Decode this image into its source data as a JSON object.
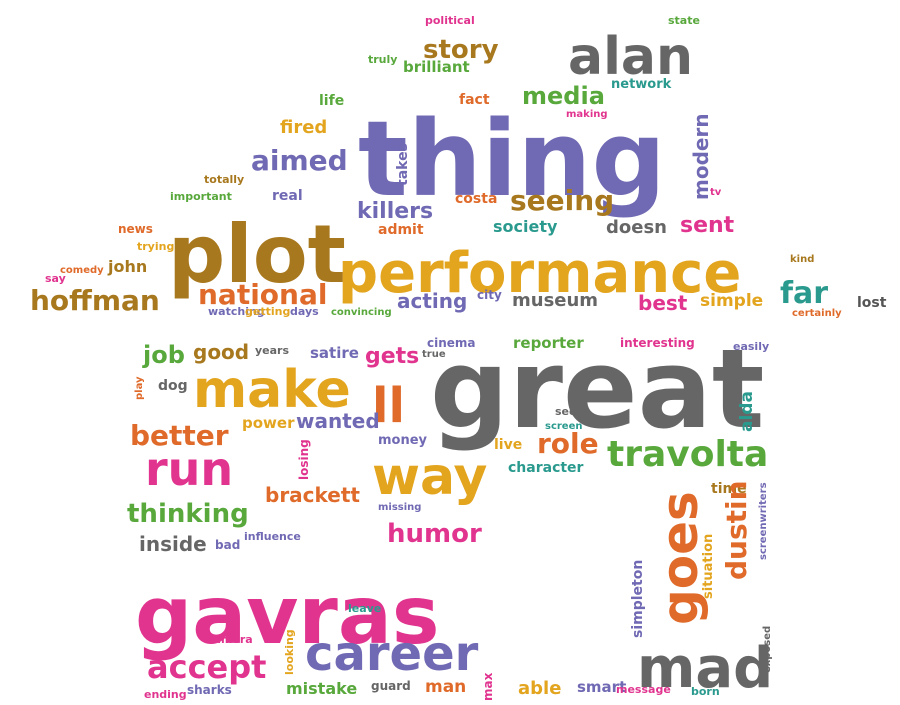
{
  "palette": {
    "purple": "#7069b3",
    "gray": "#666666",
    "olive": "#a8781e",
    "yellow": "#e3a41e",
    "orange": "#df6a2a",
    "pink": "#e1348f",
    "green": "#58a83c",
    "teal": "#2a9a8e",
    "darkgray": "#555555"
  },
  "words": [
    {
      "text": "political",
      "color": "pink"
    },
    {
      "text": "state",
      "color": "green"
    },
    {
      "text": "story",
      "color": "olive"
    },
    {
      "text": "alan",
      "color": "gray"
    },
    {
      "text": "truly",
      "color": "green"
    },
    {
      "text": "brilliant",
      "color": "green"
    },
    {
      "text": "network",
      "color": "teal"
    },
    {
      "text": "fact",
      "color": "orange"
    },
    {
      "text": "media",
      "color": "green"
    },
    {
      "text": "making",
      "color": "pink"
    },
    {
      "text": "life",
      "color": "green"
    },
    {
      "text": "thing",
      "color": "purple"
    },
    {
      "text": "fired",
      "color": "yellow"
    },
    {
      "text": "modern",
      "color": "purple"
    },
    {
      "text": "aimed",
      "color": "purple"
    },
    {
      "text": "takes",
      "color": "purple"
    },
    {
      "text": "totally",
      "color": "olive"
    },
    {
      "text": "important",
      "color": "green"
    },
    {
      "text": "real",
      "color": "purple"
    },
    {
      "text": "killers",
      "color": "purple"
    },
    {
      "text": "costa",
      "color": "orange"
    },
    {
      "text": "seeing",
      "color": "olive"
    },
    {
      "text": "tv",
      "color": "pink"
    },
    {
      "text": "news",
      "color": "orange"
    },
    {
      "text": "plot",
      "color": "olive"
    },
    {
      "text": "admit",
      "color": "orange"
    },
    {
      "text": "society",
      "color": "teal"
    },
    {
      "text": "doesn",
      "color": "gray"
    },
    {
      "text": "sent",
      "color": "pink"
    },
    {
      "text": "trying",
      "color": "yellow"
    },
    {
      "text": "kind",
      "color": "olive"
    },
    {
      "text": "say",
      "color": "pink"
    },
    {
      "text": "comedy",
      "color": "orange"
    },
    {
      "text": "john",
      "color": "olive"
    },
    {
      "text": "performance",
      "color": "yellow"
    },
    {
      "text": "national",
      "color": "orange"
    },
    {
      "text": "far",
      "color": "teal"
    },
    {
      "text": "lost",
      "color": "darkgray"
    },
    {
      "text": "hoffman",
      "color": "olive"
    },
    {
      "text": "acting",
      "color": "purple"
    },
    {
      "text": "city",
      "color": "purple"
    },
    {
      "text": "museum",
      "color": "gray"
    },
    {
      "text": "best",
      "color": "pink"
    },
    {
      "text": "simple",
      "color": "yellow"
    },
    {
      "text": "watching",
      "color": "purple"
    },
    {
      "text": "getting",
      "color": "yellow"
    },
    {
      "text": "days",
      "color": "purple"
    },
    {
      "text": "convincing",
      "color": "green"
    },
    {
      "text": "certainly",
      "color": "orange"
    },
    {
      "text": "job",
      "color": "green"
    },
    {
      "text": "good",
      "color": "olive"
    },
    {
      "text": "years",
      "color": "gray"
    },
    {
      "text": "satire",
      "color": "purple"
    },
    {
      "text": "gets",
      "color": "pink"
    },
    {
      "text": "true",
      "color": "gray"
    },
    {
      "text": "cinema",
      "color": "purple"
    },
    {
      "text": "reporter",
      "color": "green"
    },
    {
      "text": "interesting",
      "color": "pink"
    },
    {
      "text": "easily",
      "color": "purple"
    },
    {
      "text": "play",
      "color": "orange"
    },
    {
      "text": "dog",
      "color": "gray"
    },
    {
      "text": "make",
      "color": "yellow"
    },
    {
      "text": "ll",
      "color": "orange"
    },
    {
      "text": "great",
      "color": "gray"
    },
    {
      "text": "alda",
      "color": "teal"
    },
    {
      "text": "better",
      "color": "orange"
    },
    {
      "text": "power",
      "color": "yellow"
    },
    {
      "text": "wanted",
      "color": "purple"
    },
    {
      "text": "seen",
      "color": "gray"
    },
    {
      "text": "screen",
      "color": "teal"
    },
    {
      "text": "money",
      "color": "purple"
    },
    {
      "text": "live",
      "color": "yellow"
    },
    {
      "text": "role",
      "color": "orange"
    },
    {
      "text": "travolta",
      "color": "green"
    },
    {
      "text": "run",
      "color": "pink"
    },
    {
      "text": "losing",
      "color": "pink"
    },
    {
      "text": "way",
      "color": "yellow"
    },
    {
      "text": "character",
      "color": "teal"
    },
    {
      "text": "brackett",
      "color": "orange"
    },
    {
      "text": "missing",
      "color": "purple"
    },
    {
      "text": "time",
      "color": "olive"
    },
    {
      "text": "screenwriters",
      "color": "purple"
    },
    {
      "text": "thinking",
      "color": "green"
    },
    {
      "text": "goes",
      "color": "orange"
    },
    {
      "text": "dustin",
      "color": "orange"
    },
    {
      "text": "humor",
      "color": "pink"
    },
    {
      "text": "influence",
      "color": "purple"
    },
    {
      "text": "inside",
      "color": "gray"
    },
    {
      "text": "bad",
      "color": "purple"
    },
    {
      "text": "situation",
      "color": "yellow"
    },
    {
      "text": "simpleton",
      "color": "purple"
    },
    {
      "text": "gavras",
      "color": "pink"
    },
    {
      "text": "leave",
      "color": "teal"
    },
    {
      "text": "exposed",
      "color": "gray"
    },
    {
      "text": "camera",
      "color": "pink"
    },
    {
      "text": "looking",
      "color": "yellow"
    },
    {
      "text": "career",
      "color": "purple"
    },
    {
      "text": "max",
      "color": "pink"
    },
    {
      "text": "accept",
      "color": "pink"
    },
    {
      "text": "mad",
      "color": "gray"
    },
    {
      "text": "ending",
      "color": "pink"
    },
    {
      "text": "sharks",
      "color": "purple"
    },
    {
      "text": "mistake",
      "color": "green"
    },
    {
      "text": "guard",
      "color": "gray"
    },
    {
      "text": "man",
      "color": "orange"
    },
    {
      "text": "able",
      "color": "yellow"
    },
    {
      "text": "smart",
      "color": "purple"
    },
    {
      "text": "message",
      "color": "pink"
    },
    {
      "text": "born",
      "color": "teal"
    }
  ]
}
